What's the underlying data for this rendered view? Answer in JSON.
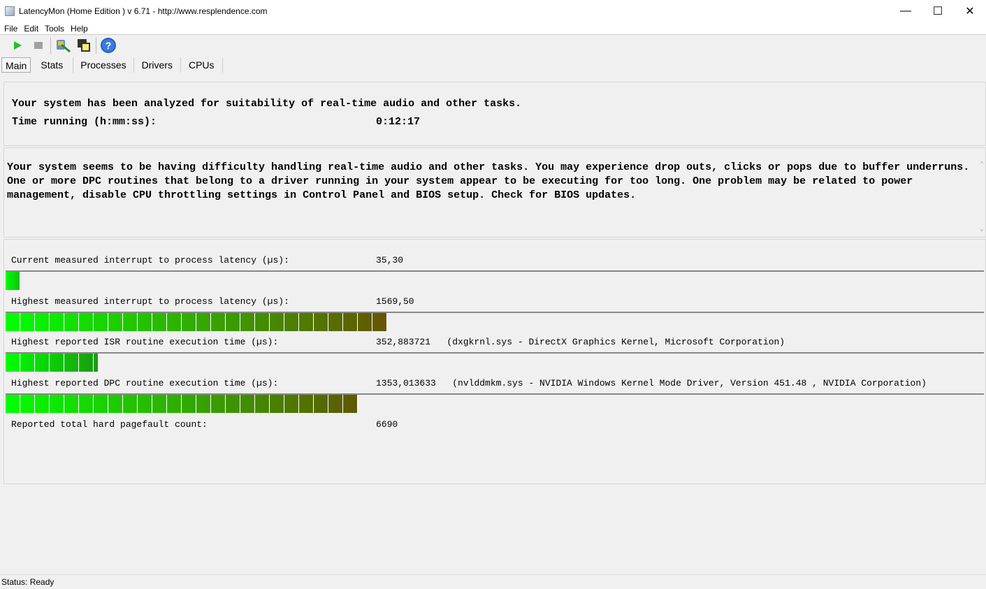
{
  "window": {
    "title": "LatencyMon  (Home Edition )  v 6.71 - http://www.resplendence.com"
  },
  "menu": [
    "File",
    "Edit",
    "Tools",
    "Help"
  ],
  "toolbar": {
    "icons": [
      "play-icon",
      "stop-icon",
      "analyze-icon",
      "windows-icon",
      "help-icon"
    ]
  },
  "tabs": [
    "Main",
    "Stats",
    "Processes",
    "Drivers",
    "CPUs"
  ],
  "summary": {
    "line1": "Your system has been analyzed for suitability of real-time audio and other tasks.",
    "time_label": "Time running (h:mm:ss):",
    "time_value": "0:12:17"
  },
  "message": "Your system seems to be having difficulty handling real-time audio and other tasks. You may experience drop outs, clicks or pops due to buffer underruns. One or more DPC routines that belong to a driver running in your system appear to be executing for too long. One problem may be related to power management, disable CPU throttling settings in Control Panel and BIOS setup. Check for BIOS updates.",
  "metrics": [
    {
      "label": "Current measured interrupt to process latency (µs):",
      "value": "35,30",
      "detail": "",
      "bar_fraction": 0.014,
      "bar_end_color": "#0fc20f"
    },
    {
      "label": "Highest measured interrupt to process latency (µs):",
      "value": "1569,50",
      "detail": "",
      "bar_fraction": 0.39,
      "bar_end_color": "#665500"
    },
    {
      "label": "Highest reported ISR routine execution time (µs):",
      "value": "352,883721",
      "detail": "(dxgkrnl.sys - DirectX Graphics Kernel, Microsoft Corporation)",
      "bar_fraction": 0.094,
      "bar_end_color": "#1a9a10"
    },
    {
      "label": "Highest reported DPC routine execution time (µs):",
      "value": "1353,013633",
      "detail": "(nvlddmkm.sys - NVIDIA Windows Kernel Mode Driver, Version 451.48 , NVIDIA Corporation)",
      "bar_fraction": 0.36,
      "bar_end_color": "#605800"
    }
  ],
  "pagefault": {
    "label": "Reported total hard pagefault count:",
    "value": "6690"
  },
  "status": "Status: Ready"
}
